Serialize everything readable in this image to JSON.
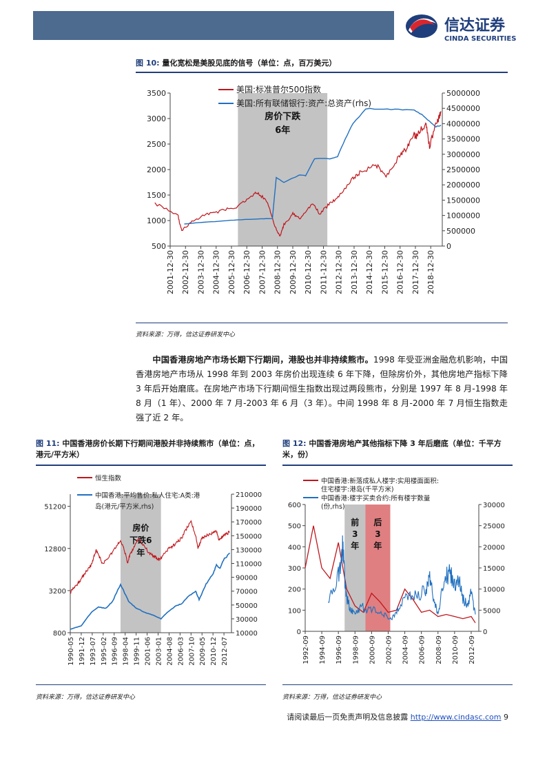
{
  "header": {
    "logo_cn": "信达证券",
    "logo_en": "CINDA SECURITIES",
    "brand_color": "#1f3e7c",
    "logo_red": "#d9262c",
    "bar_color": "#4d6a8f"
  },
  "fig10": {
    "number": "图 10:",
    "title": "量化宽松是美股见底的信号（单位：点，百万美元）",
    "source": "资料来源：万得，信达证券研发中心"
  },
  "paragraph": {
    "bold": "中国香港房地产市场长期下行期间，港股也并非持续熊市。",
    "rest": "1998 年受亚洲金融危机影响，中国香港房地产市场从 1998 年到 2003 年房价出现连续 6 年下降，但除房价外，其他房地产指标下降 3 年后开始磨底。在房地产市场下行期间恒生指数出现过两段熊市，分别是 1997 年 8 月-1998 年 8 月（1 年）、2000 年 7 月-2003 年 6 月（3 年）。中间 1998 年 8 月-2000 年 7 月恒生指数走强了近 2 年。"
  },
  "fig11": {
    "number": "图 11:",
    "title": "中国香港房价长期下行期间港股并非持续熊市（单位：点，港元/平方米）",
    "source": "资料来源：万得，信达证券研发中心"
  },
  "fig12": {
    "number": "图 12:",
    "title": "中国香港房地产其他指标下降 3 年后磨底（单位：千平方米，份）",
    "source": "资料来源：万得，信达证券研发中心"
  },
  "footer": {
    "text": "请阅读最后一页免责声明及信息披露",
    "link": "http://www.cindasc.com",
    "page": "9"
  },
  "chart_data": [
    {
      "type": "line",
      "series": [
        {
          "name": "美国:标准普尔500指数",
          "color": "#c0151b",
          "x": [
            "2001-01",
            "2002-07",
            "2002-10",
            "2003-06",
            "2004-06",
            "2005-06",
            "2006-06",
            "2007-04",
            "2007-10",
            "2008-06",
            "2008-11",
            "2009-03",
            "2009-06",
            "2010-01",
            "2010-07",
            "2011-04",
            "2011-10",
            "2012-06",
            "2013-01",
            "2013-12",
            "2014-06",
            "2015-06",
            "2016-02",
            "2016-12",
            "2017-06",
            "2017-12",
            "2018-02",
            "2018-09",
            "2018-12",
            "2019-06",
            "2019-09"
          ],
          "values": [
            1330,
            1100,
            800,
            975,
            1130,
            1195,
            1270,
            1470,
            1550,
            1310,
            875,
            690,
            920,
            1130,
            1030,
            1340,
            1130,
            1340,
            1480,
            1840,
            1950,
            2100,
            1870,
            2240,
            2420,
            2670,
            2650,
            2910,
            2450,
            2950,
            3120
          ]
        },
        {
          "name": "美国:所有联储银行:资产:总资产(rhs)",
          "color": "#1f6fbf",
          "x": [
            "2002-12",
            "2003-12",
            "2004-12",
            "2005-12",
            "2006-12",
            "2007-12",
            "2008-09",
            "2008-12",
            "2009-06",
            "2010-06",
            "2010-11",
            "2011-06",
            "2012-06",
            "2012-12",
            "2013-06",
            "2013-12",
            "2014-10",
            "2015-12",
            "2016-12",
            "2017-12",
            "2018-06",
            "2018-12",
            "2019-05",
            "2019-09"
          ],
          "values": [
            720000,
            770000,
            800000,
            840000,
            870000,
            890000,
            900000,
            2240000,
            2080000,
            2320000,
            2300000,
            2860000,
            2850000,
            2920000,
            3500000,
            4000000,
            4480000,
            4490000,
            4460000,
            4450000,
            4300000,
            4080000,
            3900000,
            3950000
          ]
        }
      ],
      "xticks": [
        "2001-12-30",
        "2002-12-30",
        "2003-12-30",
        "2004-12-30",
        "2005-12-30",
        "2006-12-30",
        "2007-12-30",
        "2008-12-30",
        "2009-12-30",
        "2010-12-30",
        "2011-12-30",
        "2012-12-30",
        "2013-12-30",
        "2014-12-30",
        "2015-12-30",
        "2016-12-30",
        "2017-12-30",
        "2018-12-30"
      ],
      "ylim": [
        500,
        3500
      ],
      "yticks": [
        500,
        1000,
        1500,
        2000,
        2500,
        3000,
        3500
      ],
      "y2lim": [
        0,
        5000000
      ],
      "y2ticks": [
        0,
        500000,
        1000000,
        1500000,
        2000000,
        2500000,
        3000000,
        3500000,
        4000000,
        4500000,
        5000000
      ],
      "shade": {
        "from": "2006-06",
        "to": "2012-04",
        "label1": "房价下跌",
        "label2": "6年",
        "color": "#bdbdbd"
      },
      "legend": "top-left"
    },
    {
      "type": "line",
      "series": [
        {
          "name": "恒生指数",
          "color": "#c0151b",
          "x": [
            "1990-05",
            "1991-06",
            "1992-06",
            "1993-06",
            "1994-02",
            "1995-01",
            "1996-06",
            "1997-08",
            "1998-08",
            "1999-06",
            "2000-03",
            "2001-09",
            "2002-09",
            "2003-04",
            "2004-06",
            "2005-06",
            "2006-06",
            "2007-10",
            "2008-10",
            "2009-06",
            "2010-06",
            "2011-06",
            "2011-10",
            "2012-06",
            "2013-05"
          ],
          "values": [
            3000,
            4000,
            5500,
            7500,
            12000,
            7500,
            11000,
            16500,
            8000,
            13000,
            17500,
            11000,
            9500,
            8700,
            12500,
            14500,
            18000,
            31000,
            13000,
            18500,
            20500,
            22500,
            17000,
            19500,
            22000
          ]
        },
        {
          "name": "中国香港:平均售价:私人住宅:A类:港岛(港元/平方米,rhs)",
          "color": "#1f6fbf",
          "x": [
            "1990-05",
            "1991-12",
            "1993-06",
            "1994-06",
            "1995-06",
            "1996-06",
            "1997-08",
            "1998-10",
            "1999-12",
            "2001-06",
            "2002-06",
            "2003-06",
            "2004-06",
            "2005-06",
            "2006-06",
            "2007-06",
            "2008-06",
            "2008-12",
            "2009-12",
            "2010-12",
            "2011-06",
            "2011-12",
            "2012-06",
            "2013-05"
          ],
          "values": [
            15000,
            20000,
            40000,
            47000,
            45000,
            55000,
            80000,
            55000,
            45000,
            38000,
            35000,
            30000,
            40000,
            48000,
            52000,
            63000,
            70000,
            58000,
            80000,
            95000,
            108000,
            103000,
            115000,
            125000
          ]
        }
      ],
      "xticks": [
        "1990-05",
        "1991-12",
        "1993-07",
        "1995-02",
        "1996-09",
        "1998-04",
        "1999-11",
        "2001-06",
        "2003-01",
        "2004-08",
        "2006-03",
        "2007-10",
        "2009-05",
        "2010-12",
        "2012-07"
      ],
      "ylog": true,
      "yticks": [
        800,
        3200,
        12800,
        51200
      ],
      "y2lim": [
        10000,
        210000
      ],
      "y2ticks": [
        10000,
        30000,
        50000,
        70000,
        90000,
        110000,
        130000,
        150000,
        170000,
        190000,
        210000
      ],
      "shade": {
        "from": "1997-08",
        "to": "2003-06",
        "label1": "房价",
        "label2": "下跌6",
        "label3": "年",
        "color": "#bdbdbd"
      },
      "legend": "top-left"
    },
    {
      "type": "line",
      "series": [
        {
          "name": "中国香港:新落成私人楼宇:实用楼面面积:住宅楼宇:港岛(千平方米)",
          "color": "#c0151b",
          "x": [
            "1992-09",
            "1993-09",
            "1994-09",
            "1995-09",
            "1996-09",
            "1997-09",
            "1998-09",
            "1999-09",
            "2000-09",
            "2001-09",
            "2002-09",
            "2003-09",
            "2004-09",
            "2005-09",
            "2006-09",
            "2007-09",
            "2008-09",
            "2009-09",
            "2010-09",
            "2011-09",
            "2012-09",
            "2013-03"
          ],
          "values": [
            300,
            500,
            300,
            250,
            420,
            200,
            120,
            90,
            180,
            140,
            90,
            100,
            200,
            150,
            90,
            100,
            70,
            80,
            70,
            60,
            70,
            40
          ]
        },
        {
          "name": "中国香港:楼宇买卖合约:所有楼宇数量(份,rhs)",
          "color": "#1f6fbf",
          "x": [
            "1995-06",
            "1996-06",
            "1996-12",
            "1997-03",
            "1997-06",
            "1997-09",
            "1998-03",
            "1998-09",
            "1999-06",
            "2000-03",
            "2001-03",
            "2002-03",
            "2002-09",
            "2003-06",
            "2004-03",
            "2005-03",
            "2006-03",
            "2007-03",
            "2007-09",
            "2008-03",
            "2008-09",
            "2009-03",
            "2009-09",
            "2010-03",
            "2010-09",
            "2011-03",
            "2011-09",
            "2012-03",
            "2012-09",
            "2013-03"
          ],
          "values": [
            7000,
            12000,
            15000,
            20000,
            13000,
            8000,
            5000,
            4000,
            6000,
            5000,
            5000,
            4000,
            3000,
            3500,
            6500,
            9000,
            8000,
            10000,
            12500,
            8000,
            4000,
            10000,
            13000,
            14000,
            11000,
            12000,
            8000,
            6000,
            9000,
            4000
          ]
        }
      ],
      "xticks": [
        "1992-09",
        "1994-09",
        "1996-09",
        "1998-09",
        "2000-09",
        "2002-09",
        "2004-09",
        "2006-09",
        "2008-09",
        "2010-09",
        "2012-09"
      ],
      "ylim": [
        0,
        600
      ],
      "yticks": [
        0,
        100,
        200,
        300,
        400,
        500,
        600
      ],
      "y2lim": [
        0,
        30000
      ],
      "y2ticks": [
        0,
        5000,
        10000,
        15000,
        20000,
        25000,
        30000
      ],
      "shades": [
        {
          "from": "1997-06",
          "to": "1999-12",
          "label1": "前",
          "label2": "3",
          "label3": "年",
          "color": "#bdbdbd"
        },
        {
          "from": "1999-12",
          "to": "2002-12",
          "label1": "后",
          "label2": "3",
          "label3": "年",
          "color": "#d9696b"
        }
      ],
      "legend": "top-left"
    }
  ]
}
